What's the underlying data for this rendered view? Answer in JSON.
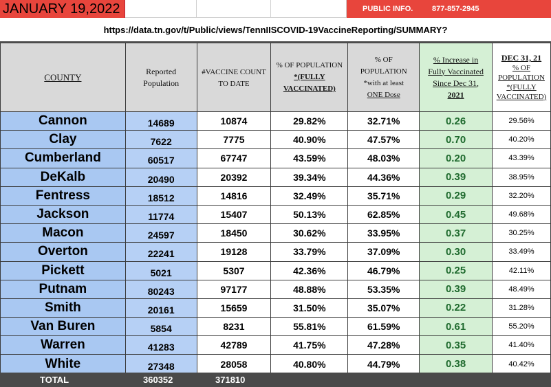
{
  "banner": {
    "title": "JANUARY 19,2022",
    "public_info_label": "PUBLIC INFO.",
    "phone": "877-857-2945"
  },
  "url": "https://data.tn.gov/t/Public/views/TennIISCOVID-19VaccineReporting/SUMMARY?",
  "headers": {
    "county": "COUNTY",
    "reported_line1": "Reported",
    "reported_line2": "Population",
    "vaccine_line1": "#VACCINE COUNT",
    "vaccine_line2": "TO DATE",
    "pct_full_line1": "% OF POPULATION",
    "pct_full_line2": "*(FULLY",
    "pct_full_line3": "VACCINATED)",
    "pct_one_line1": "% OF",
    "pct_one_line2": "POPULATION",
    "pct_one_line3": "*with at least",
    "pct_one_line4": "ONE Dose",
    "inc_line1": "% Increase in",
    "inc_line2": "Fully Vaccinated",
    "inc_line3": "Since Dec 31,",
    "inc_line4": "2021",
    "dec_line1": "DEC 31, 21",
    "dec_line2": "% OF",
    "dec_line3": "POPULATION",
    "dec_line4": "*(FULLY",
    "dec_line5": "VACCINATED)"
  },
  "rows": [
    {
      "county": "Cannon",
      "pop": "14689",
      "count": "10874",
      "pct_full": "29.82%",
      "pct_one": "32.71%",
      "increase": "0.26",
      "dec31": "29.56%"
    },
    {
      "county": "Clay",
      "pop": "7622",
      "count": "7775",
      "pct_full": "40.90%",
      "pct_one": "47.57%",
      "increase": "0.70",
      "dec31": "40.20%"
    },
    {
      "county": "Cumberland",
      "pop": "60517",
      "count": "67747",
      "pct_full": "43.59%",
      "pct_one": "48.03%",
      "increase": "0.20",
      "dec31": "43.39%"
    },
    {
      "county": "DeKalb",
      "pop": "20490",
      "count": "20392",
      "pct_full": "39.34%",
      "pct_one": "44.36%",
      "increase": "0.39",
      "dec31": "38.95%"
    },
    {
      "county": "Fentress",
      "pop": "18512",
      "count": "14816",
      "pct_full": "32.49%",
      "pct_one": "35.71%",
      "increase": "0.29",
      "dec31": "32.20%"
    },
    {
      "county": "Jackson",
      "pop": "11774",
      "count": "15407",
      "pct_full": "50.13%",
      "pct_one": "62.85%",
      "increase": "0.45",
      "dec31": "49.68%"
    },
    {
      "county": "Macon",
      "pop": "24597",
      "count": "18450",
      "pct_full": "30.62%",
      "pct_one": "33.95%",
      "increase": "0.37",
      "dec31": "30.25%"
    },
    {
      "county": "Overton",
      "pop": "22241",
      "count": "19128",
      "pct_full": "33.79%",
      "pct_one": "37.09%",
      "increase": "0.30",
      "dec31": "33.49%"
    },
    {
      "county": "Pickett",
      "pop": "5021",
      "count": "5307",
      "pct_full": "42.36%",
      "pct_one": "46.79%",
      "increase": "0.25",
      "dec31": "42.11%"
    },
    {
      "county": "Putnam",
      "pop": "80243",
      "count": "97177",
      "pct_full": "48.88%",
      "pct_one": "53.35%",
      "increase": "0.39",
      "dec31": "48.49%"
    },
    {
      "county": "Smith",
      "pop": "20161",
      "count": "15659",
      "pct_full": "31.50%",
      "pct_one": "35.07%",
      "increase": "0.22",
      "dec31": "31.28%"
    },
    {
      "county": "Van Buren",
      "pop": "5854",
      "count": "8231",
      "pct_full": "55.81%",
      "pct_one": "61.59%",
      "increase": "0.61",
      "dec31": "55.20%"
    },
    {
      "county": "Warren",
      "pop": "41283",
      "count": "42789",
      "pct_full": "41.75%",
      "pct_one": "47.28%",
      "increase": "0.35",
      "dec31": "41.40%"
    },
    {
      "county": "White",
      "pop": "27348",
      "count": "28058",
      "pct_full": "40.80%",
      "pct_one": "44.79%",
      "increase": "0.38",
      "dec31": "40.42%"
    }
  ],
  "total": {
    "label": "TOTAL",
    "pop": "360352",
    "count": "371810"
  },
  "colors": {
    "banner_red": "#e8453c",
    "county_blue": "#a9c8f2",
    "increase_green": "#d5f0d5",
    "increase_text": "#1f6a2e",
    "total_bar": "#4a4a4a"
  }
}
